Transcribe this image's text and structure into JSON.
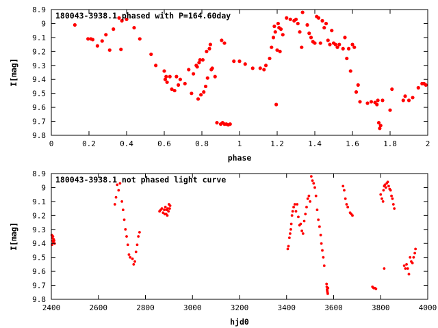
{
  "chart_data": [
    {
      "type": "scatter",
      "title": "180043-3938.1 phased with P=164.60day",
      "xlabel": "phase",
      "ylabel": "I[mag]",
      "xlim": [
        0,
        2
      ],
      "ylim": [
        9.8,
        8.9
      ],
      "y_inverted": true,
      "grid": false,
      "marker_color": "#ff0000",
      "xticks": [
        "0",
        "0.2",
        "0.4",
        "0.6",
        "0.8",
        "1",
        "1.2",
        "1.4",
        "1.6",
        "1.8",
        "2"
      ],
      "yticks": [
        "8.9",
        "9",
        "9.1",
        "9.2",
        "9.3",
        "9.4",
        "9.5",
        "9.6",
        "9.7",
        "9.8"
      ],
      "points": [
        [
          0.125,
          9.01
        ],
        [
          0.195,
          9.11
        ],
        [
          0.21,
          9.11
        ],
        [
          0.22,
          9.115
        ],
        [
          0.245,
          9.16
        ],
        [
          0.27,
          9.125
        ],
        [
          0.29,
          9.08
        ],
        [
          0.31,
          9.19
        ],
        [
          0.33,
          9.04
        ],
        [
          0.36,
          8.96
        ],
        [
          0.37,
          9.185
        ],
        [
          0.375,
          8.98
        ],
        [
          0.4,
          8.97
        ],
        [
          0.44,
          9.03
        ],
        [
          0.47,
          9.11
        ],
        [
          0.53,
          9.22
        ],
        [
          0.555,
          9.3
        ],
        [
          0.6,
          9.34
        ],
        [
          0.605,
          9.4
        ],
        [
          0.61,
          9.38
        ],
        [
          0.615,
          9.42
        ],
        [
          0.63,
          9.38
        ],
        [
          0.64,
          9.47
        ],
        [
          0.655,
          9.48
        ],
        [
          0.665,
          9.38
        ],
        [
          0.675,
          9.44
        ],
        [
          0.685,
          9.4
        ],
        [
          0.71,
          9.43
        ],
        [
          0.73,
          9.33
        ],
        [
          0.745,
          9.5
        ],
        [
          0.755,
          9.36
        ],
        [
          0.77,
          9.3
        ],
        [
          0.775,
          9.31
        ],
        [
          0.78,
          9.54
        ],
        [
          0.785,
          9.28
        ],
        [
          0.79,
          9.26
        ],
        [
          0.795,
          9.51
        ],
        [
          0.805,
          9.26
        ],
        [
          0.81,
          9.49
        ],
        [
          0.82,
          9.45
        ],
        [
          0.825,
          9.2
        ],
        [
          0.83,
          9.39
        ],
        [
          0.84,
          9.18
        ],
        [
          0.845,
          9.15
        ],
        [
          0.85,
          9.33
        ],
        [
          0.855,
          9.32
        ],
        [
          0.87,
          9.38
        ],
        [
          0.88,
          9.71
        ],
        [
          0.9,
          9.72
        ],
        [
          0.91,
          9.71
        ],
        [
          0.92,
          9.72
        ],
        [
          0.93,
          9.72
        ],
        [
          0.94,
          9.725
        ],
        [
          0.95,
          9.72
        ],
        [
          0.905,
          9.12
        ],
        [
          0.92,
          9.14
        ],
        [
          0.97,
          9.27
        ],
        [
          1.0,
          9.27
        ],
        [
          1.03,
          9.29
        ],
        [
          1.07,
          9.32
        ],
        [
          1.11,
          9.32
        ],
        [
          1.13,
          9.33
        ],
        [
          1.14,
          9.3
        ],
        [
          1.16,
          9.25
        ],
        [
          1.17,
          9.17
        ],
        [
          1.18,
          9.1
        ],
        [
          1.185,
          9.02
        ],
        [
          1.19,
          9.06
        ],
        [
          1.195,
          9.58
        ],
        [
          1.2,
          9.19
        ],
        [
          1.205,
          9.0
        ],
        [
          1.21,
          9.03
        ],
        [
          1.215,
          9.2
        ],
        [
          1.22,
          9.04
        ],
        [
          1.23,
          9.08
        ],
        [
          1.25,
          8.96
        ],
        [
          1.27,
          8.97
        ],
        [
          1.29,
          8.98
        ],
        [
          1.3,
          8.97
        ],
        [
          1.31,
          9.0
        ],
        [
          1.32,
          9.06
        ],
        [
          1.33,
          9.17
        ],
        [
          1.335,
          8.92
        ],
        [
          1.36,
          9.01
        ],
        [
          1.37,
          9.07
        ],
        [
          1.38,
          9.1
        ],
        [
          1.39,
          9.13
        ],
        [
          1.4,
          9.14
        ],
        [
          1.41,
          8.95
        ],
        [
          1.42,
          8.96
        ],
        [
          1.43,
          9.14
        ],
        [
          1.44,
          8.98
        ],
        [
          1.45,
          9.03
        ],
        [
          1.46,
          9.0
        ],
        [
          1.47,
          9.12
        ],
        [
          1.48,
          9.15
        ],
        [
          1.49,
          9.05
        ],
        [
          1.5,
          9.14
        ],
        [
          1.51,
          9.15
        ],
        [
          1.52,
          9.17
        ],
        [
          1.53,
          9.15
        ],
        [
          1.55,
          9.18
        ],
        [
          1.56,
          9.1
        ],
        [
          1.57,
          9.25
        ],
        [
          1.58,
          9.18
        ],
        [
          1.59,
          9.34
        ],
        [
          1.6,
          9.15
        ],
        [
          1.61,
          9.17
        ],
        [
          1.62,
          9.49
        ],
        [
          1.63,
          9.44
        ],
        [
          1.64,
          9.56
        ],
        [
          1.68,
          9.57
        ],
        [
          1.7,
          9.56
        ],
        [
          1.72,
          9.565
        ],
        [
          1.74,
          9.71
        ],
        [
          1.745,
          9.75
        ],
        [
          1.75,
          9.73
        ],
        [
          1.76,
          9.55
        ],
        [
          1.8,
          9.62
        ],
        [
          1.81,
          9.47
        ],
        [
          1.87,
          9.55
        ],
        [
          1.88,
          9.52
        ],
        [
          1.9,
          9.55
        ],
        [
          1.92,
          9.53
        ],
        [
          1.95,
          9.46
        ],
        [
          1.97,
          9.43
        ],
        [
          1.98,
          9.43
        ],
        [
          1.99,
          9.44
        ],
        [
          1.73,
          9.58
        ],
        [
          1.735,
          9.55
        ]
      ]
    },
    {
      "type": "scatter",
      "title": "180043-3938.1 not phased light curve",
      "xlabel": "hjd0",
      "ylabel": "I[mag]",
      "xlim": [
        2400,
        4000
      ],
      "ylim": [
        9.8,
        8.9
      ],
      "y_inverted": true,
      "grid": false,
      "marker_color": "#ff0000",
      "xticks": [
        "2400",
        "2600",
        "2800",
        "3000",
        "3200",
        "3400",
        "3600",
        "3800",
        "4000"
      ],
      "yticks": [
        "8.9",
        "9",
        "9.1",
        "9.2",
        "9.3",
        "9.4",
        "9.5",
        "9.6",
        "9.7",
        "9.8"
      ],
      "points": [
        [
          2402,
          9.34
        ],
        [
          2404,
          9.36
        ],
        [
          2406,
          9.38
        ],
        [
          2408,
          9.39
        ],
        [
          2410,
          9.37
        ],
        [
          2412,
          9.38
        ],
        [
          2414,
          9.4
        ],
        [
          2403,
          9.41
        ],
        [
          2407,
          9.35
        ],
        [
          2670,
          9.12
        ],
        [
          2675,
          9.07
        ],
        [
          2680,
          8.98
        ],
        [
          2686,
          9.02
        ],
        [
          2692,
          8.97
        ],
        [
          2700,
          9.1
        ],
        [
          2705,
          9.16
        ],
        [
          2710,
          9.23
        ],
        [
          2715,
          9.3
        ],
        [
          2720,
          9.35
        ],
        [
          2725,
          9.41
        ],
        [
          2730,
          9.48
        ],
        [
          2735,
          9.5
        ],
        [
          2745,
          9.51
        ],
        [
          2750,
          9.55
        ],
        [
          2755,
          9.53
        ],
        [
          2760,
          9.46
        ],
        [
          2765,
          9.41
        ],
        [
          2770,
          9.35
        ],
        [
          2775,
          9.32
        ],
        [
          2860,
          9.17
        ],
        [
          2865,
          9.16
        ],
        [
          2870,
          9.15
        ],
        [
          2875,
          9.18
        ],
        [
          2880,
          9.16
        ],
        [
          2882,
          9.19
        ],
        [
          2885,
          9.14
        ],
        [
          2888,
          9.19
        ],
        [
          2890,
          9.16
        ],
        [
          2893,
          9.2
        ],
        [
          2895,
          9.15
        ],
        [
          2898,
          9.17
        ],
        [
          2900,
          9.12
        ],
        [
          2903,
          9.15
        ],
        [
          2905,
          9.13
        ],
        [
          3405,
          9.44
        ],
        [
          3408,
          9.42
        ],
        [
          3412,
          9.36
        ],
        [
          3415,
          9.33
        ],
        [
          3418,
          9.3
        ],
        [
          3420,
          9.26
        ],
        [
          3423,
          9.2
        ],
        [
          3426,
          9.17
        ],
        [
          3430,
          9.14
        ],
        [
          3435,
          9.12
        ],
        [
          3440,
          9.17
        ],
        [
          3445,
          9.12
        ],
        [
          3450,
          9.21
        ],
        [
          3455,
          9.27
        ],
        [
          3460,
          9.26
        ],
        [
          3465,
          9.31
        ],
        [
          3470,
          9.33
        ],
        [
          3475,
          9.24
        ],
        [
          3480,
          9.19
        ],
        [
          3485,
          9.14
        ],
        [
          3490,
          9.08
        ],
        [
          3495,
          9.06
        ],
        [
          3500,
          9.1
        ],
        [
          3505,
          8.92
        ],
        [
          3510,
          8.95
        ],
        [
          3515,
          8.97
        ],
        [
          3520,
          9.0
        ],
        [
          3525,
          9.06
        ],
        [
          3530,
          9.16
        ],
        [
          3535,
          9.23
        ],
        [
          3540,
          9.28
        ],
        [
          3545,
          9.34
        ],
        [
          3548,
          9.4
        ],
        [
          3552,
          9.45
        ],
        [
          3556,
          9.5
        ],
        [
          3560,
          9.56
        ],
        [
          3570,
          9.69
        ],
        [
          3571,
          9.71
        ],
        [
          3572,
          9.73
        ],
        [
          3573,
          9.74
        ],
        [
          3574,
          9.75
        ],
        [
          3575,
          9.76
        ],
        [
          3576,
          9.72
        ],
        [
          3640,
          8.99
        ],
        [
          3645,
          9.02
        ],
        [
          3650,
          9.08
        ],
        [
          3655,
          9.12
        ],
        [
          3660,
          9.14
        ],
        [
          3670,
          9.18
        ],
        [
          3675,
          9.19
        ],
        [
          3680,
          9.2
        ],
        [
          3765,
          9.71
        ],
        [
          3770,
          9.72
        ],
        [
          3775,
          9.72
        ],
        [
          3780,
          9.725
        ],
        [
          3800,
          9.05
        ],
        [
          3805,
          9.08
        ],
        [
          3810,
          9.1
        ],
        [
          3812,
          9.02
        ],
        [
          3815,
          8.99
        ],
        [
          3818,
          8.98
        ],
        [
          3822,
          9.0
        ],
        [
          3826,
          8.97
        ],
        [
          3830,
          8.96
        ],
        [
          3834,
          8.99
        ],
        [
          3838,
          9.01
        ],
        [
          3842,
          9.02
        ],
        [
          3846,
          9.06
        ],
        [
          3850,
          9.08
        ],
        [
          3854,
          9.12
        ],
        [
          3858,
          9.15
        ],
        [
          3815,
          9.58
        ],
        [
          3900,
          9.56
        ],
        [
          3905,
          9.58
        ],
        [
          3910,
          9.55
        ],
        [
          3915,
          9.58
        ],
        [
          3920,
          9.62
        ],
        [
          3925,
          9.5
        ],
        [
          3930,
          9.53
        ],
        [
          3935,
          9.54
        ],
        [
          3940,
          9.5
        ],
        [
          3945,
          9.47
        ],
        [
          3948,
          9.44
        ]
      ]
    }
  ]
}
